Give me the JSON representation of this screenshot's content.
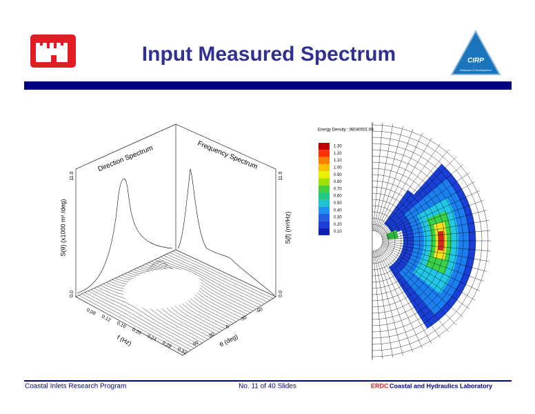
{
  "header": {
    "title": "Input Measured Spectrum",
    "logo_right": {
      "name": "CIRP",
      "caption": "Research & Development"
    }
  },
  "figure_3d": {
    "direction_title": "Direction Spectrum",
    "frequency_title": "Frequency Spectrum",
    "left_axis_label": "S(θ) (x1000 m² /deg)",
    "right_axis_label": "S(f) (m²/Hz)",
    "left_ticks": [
      "11.0",
      "0.0"
    ],
    "right_ticks": [
      "11.0",
      "0.0"
    ],
    "f_label": "f (Hz)",
    "f_ticks": [
      "0.08",
      "0.12",
      "0.16",
      "0.20",
      "0.24",
      "0.28",
      "0.32"
    ],
    "theta_label": "θ (deg)",
    "theta_ticks": [
      "-60",
      "-30",
      "0",
      "30",
      "60"
    ]
  },
  "figure_polar": {
    "legend_title": "Energy Density : 98040501.00",
    "legend_ticks": [
      "1.30",
      "1.20",
      "1.10",
      "1.00",
      "0.90",
      "0.80",
      "0.70",
      "0.60",
      "0.50",
      "0.40",
      "0.30",
      "0.20",
      "0.10"
    ]
  },
  "footer": {
    "left": "Coastal Inlets Research Program",
    "center": "No. 11 of 40 Slides",
    "right_org": "ERDC",
    "right_lab": "Coastal and Hydraulics Laboratory"
  }
}
